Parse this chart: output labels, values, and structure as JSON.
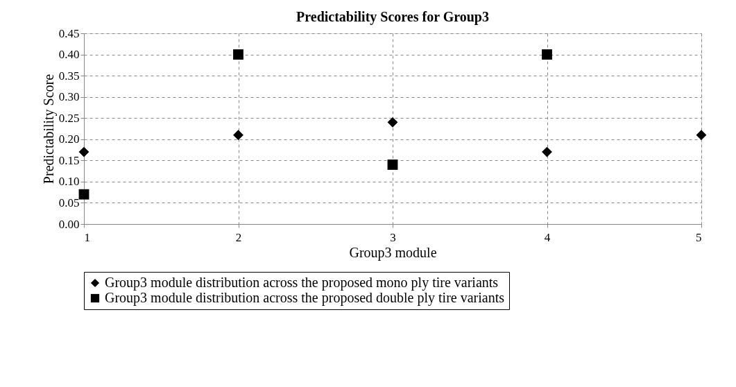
{
  "chart_data": {
    "type": "scatter",
    "title": "Predictability Scores for Group3",
    "xlabel": "Group3 module",
    "ylabel": "Predictability Score",
    "x": [
      1,
      2,
      3,
      4,
      5
    ],
    "series": [
      {
        "name": "Group3 module distribution across the proposed mono ply tire variants",
        "color": "#000000",
        "marker": "diamond",
        "values": [
          0.17,
          0.21,
          0.24,
          0.17,
          0.21
        ]
      },
      {
        "name": "Group3 module distribution across the proposed double ply tire variants",
        "color": "#000000",
        "marker": "square",
        "x": [
          1,
          2,
          3,
          4
        ],
        "values": [
          0.07,
          0.4,
          0.14,
          0.4
        ]
      }
    ],
    "xlim": [
      1,
      5
    ],
    "xticks": [
      1,
      2,
      3,
      4,
      5
    ],
    "ylim": [
      0,
      0.45
    ],
    "yticks": [
      {
        "value": 0,
        "label": "0.00"
      },
      {
        "value": 0.05,
        "label": "0.05"
      },
      {
        "value": 0.1,
        "label": "0.10"
      },
      {
        "value": 0.15,
        "label": "0.15"
      },
      {
        "value": 0.2,
        "label": "0.20"
      },
      {
        "value": 0.25,
        "label": "0.25"
      },
      {
        "value": 0.3,
        "label": "0.30"
      },
      {
        "value": 0.35,
        "label": "0.35"
      },
      {
        "value": 0.4,
        "label": "0.40"
      },
      {
        "value": 0.45,
        "label": "0.45"
      }
    ],
    "grid": true,
    "legend": "bottom",
    "line_style": "dashed"
  }
}
